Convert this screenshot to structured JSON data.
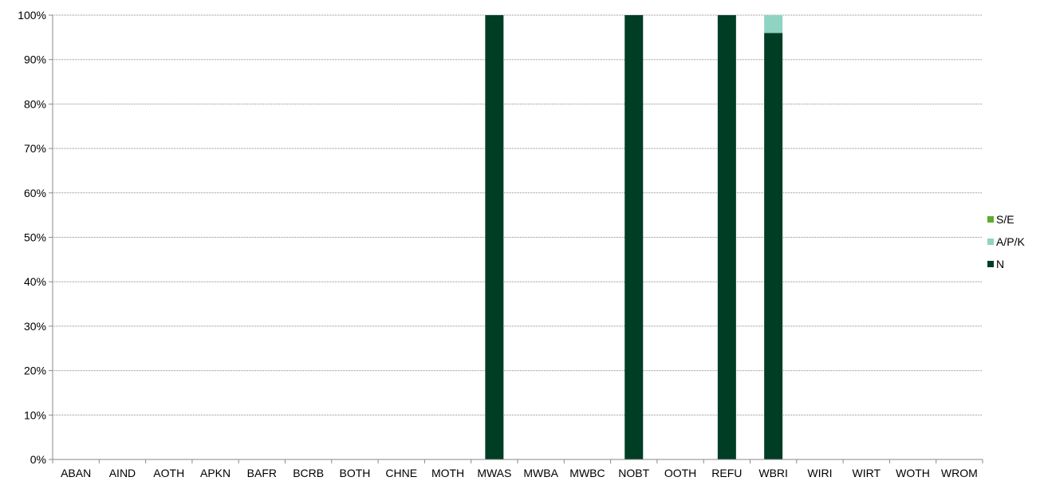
{
  "chart_data": {
    "type": "bar",
    "stacked": true,
    "percent": true,
    "categories": [
      "ABAN",
      "AIND",
      "AOTH",
      "APKN",
      "BAFR",
      "BCRB",
      "BOTH",
      "CHNE",
      "MOTH",
      "MWAS",
      "MWBA",
      "MWBC",
      "NOBT",
      "OOTH",
      "REFU",
      "WBRI",
      "WIRI",
      "WIRT",
      "WOTH",
      "WROM"
    ],
    "series": [
      {
        "name": "N",
        "color": "#003d25",
        "values": [
          0,
          0,
          0,
          0,
          0,
          0,
          0,
          0,
          0,
          100,
          0,
          0,
          100,
          0,
          100,
          96,
          0,
          0,
          0,
          0
        ]
      },
      {
        "name": "A/P/K",
        "color": "#8fd3c3",
        "values": [
          0,
          0,
          0,
          0,
          0,
          0,
          0,
          0,
          0,
          0,
          0,
          0,
          0,
          0,
          0,
          4,
          0,
          0,
          0,
          0
        ]
      },
      {
        "name": "S/E",
        "color": "#5cac2d",
        "values": [
          0,
          0,
          0,
          0,
          0,
          0,
          0,
          0,
          0,
          0,
          0,
          0,
          0,
          0,
          0,
          0,
          0,
          0,
          0,
          0
        ]
      }
    ],
    "y_ticks": [
      "0%",
      "10%",
      "20%",
      "30%",
      "40%",
      "50%",
      "60%",
      "70%",
      "80%",
      "90%",
      "100%"
    ],
    "ylim": [
      0,
      100
    ],
    "grid": true,
    "legend_position": "right"
  }
}
